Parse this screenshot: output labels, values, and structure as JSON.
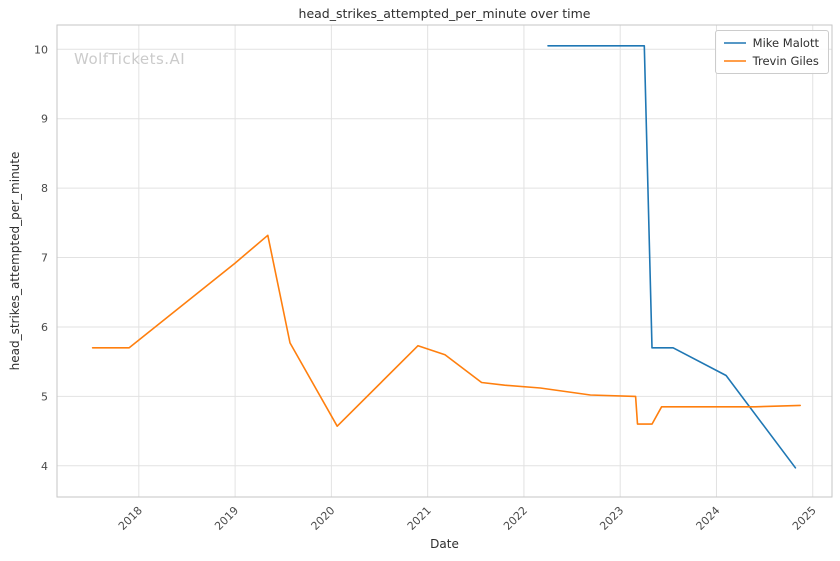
{
  "watermark": "WolfTickets.AI",
  "chart_data": {
    "type": "line",
    "title": "head_strikes_attempted_per_minute over time",
    "xlabel": "Date",
    "ylabel": "head_strikes_attempted_per_minute",
    "xlim": [
      2017.15,
      2025.2
    ],
    "ylim": [
      3.55,
      10.35
    ],
    "x_ticks": [
      2018,
      2019,
      2020,
      2021,
      2022,
      2023,
      2024,
      2025
    ],
    "y_ticks": [
      4,
      5,
      6,
      7,
      8,
      9,
      10
    ],
    "grid": true,
    "legend_position": "upper right",
    "colors": {
      "background": "#ffffff",
      "grid": "#e2e2e2",
      "spine": "#c6c6c6",
      "tick_text": "#4a4a4a",
      "watermark": "#cbcbcb"
    },
    "series": [
      {
        "name": "Mike Malott",
        "color": "#1f77b4",
        "points": [
          [
            2022.25,
            10.05
          ],
          [
            2023.25,
            10.05
          ],
          [
            2023.33,
            5.7
          ],
          [
            2023.55,
            5.7
          ],
          [
            2024.1,
            5.3
          ],
          [
            2024.82,
            3.97
          ]
        ]
      },
      {
        "name": "Trevin Giles",
        "color": "#ff7f0e",
        "points": [
          [
            2017.52,
            5.7
          ],
          [
            2017.9,
            5.7
          ],
          [
            2019.0,
            6.92
          ],
          [
            2019.34,
            7.32
          ],
          [
            2019.57,
            5.77
          ],
          [
            2020.06,
            4.57
          ],
          [
            2020.9,
            5.73
          ],
          [
            2021.18,
            5.6
          ],
          [
            2021.56,
            5.2
          ],
          [
            2021.8,
            5.16
          ],
          [
            2022.17,
            5.12
          ],
          [
            2022.69,
            5.02
          ],
          [
            2023.16,
            5.0
          ],
          [
            2023.18,
            4.6
          ],
          [
            2023.33,
            4.6
          ],
          [
            2023.43,
            4.85
          ],
          [
            2024.4,
            4.85
          ],
          [
            2024.87,
            4.87
          ]
        ]
      }
    ]
  }
}
